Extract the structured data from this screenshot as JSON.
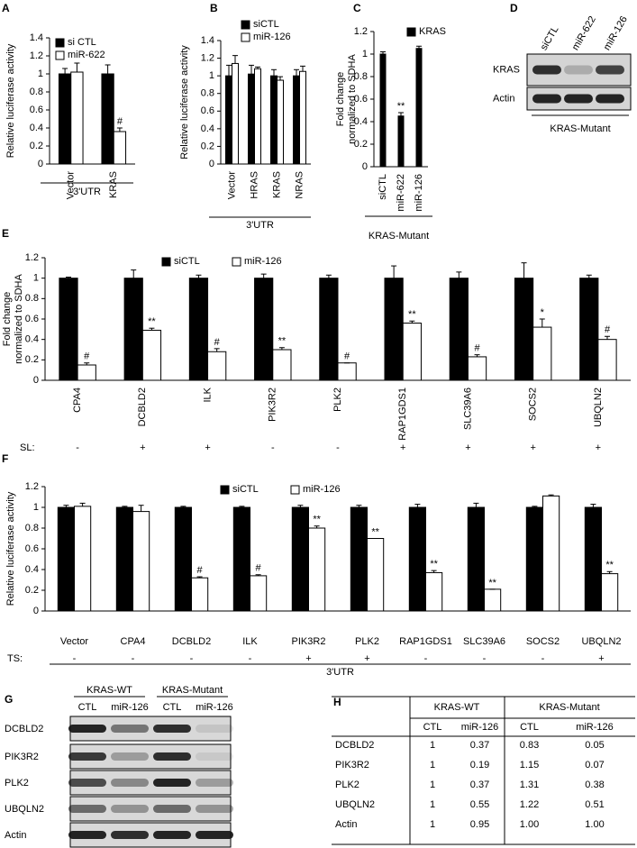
{
  "chart_data": [
    {
      "panel": "A",
      "type": "bar",
      "ylabel": "Relative luciferase activity",
      "categories": [
        "Vector",
        "KRAS"
      ],
      "series": [
        {
          "name": "si CTL",
          "color": "#000000",
          "values": [
            1,
            1
          ],
          "errors": [
            0.06,
            0.1
          ]
        },
        {
          "name": "miR-622",
          "color": "#ffffff",
          "values": [
            1.02,
            0.36
          ],
          "errors": [
            0.1,
            0.04
          ],
          "annotations": [
            null,
            "#"
          ]
        }
      ],
      "ylim": [
        0,
        1.4
      ],
      "yticks": [
        0,
        0.2,
        0.4,
        0.6,
        0.8,
        1,
        1.2,
        1.4
      ],
      "group_label": "3'UTR"
    },
    {
      "panel": "B",
      "type": "bar",
      "ylabel": "Relative luciferase activity",
      "categories": [
        "Vector",
        "HRAS",
        "KRAS",
        "NRAS"
      ],
      "series": [
        {
          "name": "siCTL",
          "color": "#000000",
          "values": [
            1,
            1.02,
            1,
            1
          ],
          "errors": [
            0.12,
            0.1,
            0.07,
            0.07
          ]
        },
        {
          "name": "miR-126",
          "color": "#ffffff",
          "values": [
            1.14,
            1.08,
            0.95,
            1.05
          ],
          "errors": [
            0.09,
            0.02,
            0.04,
            0.06
          ]
        }
      ],
      "ylim": [
        0,
        1.4
      ],
      "yticks": [
        0,
        0.2,
        0.4,
        0.6,
        0.8,
        1,
        1.2,
        1.4
      ],
      "group_label": "3'UTR"
    },
    {
      "panel": "C",
      "type": "bar",
      "ylabel": [
        "Fold change",
        "normalized to SDHA"
      ],
      "categories": [
        "siCTL",
        "miR-622",
        "miR-126"
      ],
      "series": [
        {
          "name": "KRAS",
          "color": "#000000",
          "values": [
            1,
            0.45,
            1.05
          ],
          "errors": [
            0.02,
            0.03,
            0.02
          ],
          "annotations": [
            null,
            "**",
            null
          ]
        }
      ],
      "ylim": [
        0,
        1.2
      ],
      "yticks": [
        0,
        0.2,
        0.4,
        0.6,
        0.8,
        1,
        1.2
      ],
      "group_label": "KRAS-Mutant"
    },
    {
      "panel": "E",
      "type": "bar",
      "ylabel": [
        "Fold change",
        "normalized to SDHA"
      ],
      "categories": [
        "CPA4",
        "DCBLD2",
        "ILK",
        "PIK3R2",
        "PLK2",
        "RAP1GDS1",
        "SLC39A6",
        "SOCS2",
        "UBQLN2"
      ],
      "series": [
        {
          "name": "siCTL",
          "color": "#000000",
          "values": [
            1,
            1,
            1,
            1,
            1,
            1,
            1,
            1,
            1
          ],
          "errors": [
            0.01,
            0.08,
            0.03,
            0.04,
            0.03,
            0.12,
            0.06,
            0.15,
            0.03
          ]
        },
        {
          "name": "miR-126",
          "color": "#ffffff",
          "values": [
            0.15,
            0.49,
            0.28,
            0.3,
            0.17,
            0.56,
            0.23,
            0.52,
            0.4
          ],
          "errors": [
            0.02,
            0.02,
            0.03,
            0.02,
            0,
            0.02,
            0.02,
            0.08,
            0.03
          ],
          "annotations": [
            "#",
            "**",
            "#",
            "**",
            "#",
            "**",
            "#",
            "*",
            "#"
          ]
        }
      ],
      "ylim": [
        0,
        1.2
      ],
      "yticks": [
        0,
        0.2,
        0.4,
        0.6,
        0.8,
        1,
        1.2
      ],
      "row_label": "SL:",
      "row_values": [
        "-",
        "+",
        "+",
        "-",
        "-",
        "+",
        "+",
        "+",
        "+"
      ]
    },
    {
      "panel": "F",
      "type": "bar",
      "ylabel": "Relative luciferase activity",
      "categories": [
        "Vector",
        "CPA4",
        "DCBLD2",
        "ILK",
        "PIK3R2",
        "PLK2",
        "RAP1GDS1",
        "SLC39A6",
        "SOCS2",
        "UBQLN2"
      ],
      "series": [
        {
          "name": "siCTL",
          "color": "#000000",
          "values": [
            1,
            1,
            1,
            1,
            1,
            1,
            1,
            1,
            1,
            1
          ],
          "errors": [
            0.02,
            0.01,
            0.01,
            0.01,
            0.02,
            0.02,
            0.03,
            0.04,
            0.01,
            0.03
          ]
        },
        {
          "name": "miR-126",
          "color": "#ffffff",
          "values": [
            1.01,
            0.96,
            0.32,
            0.34,
            0.8,
            0.7,
            0.37,
            0.21,
            1.11,
            0.36
          ],
          "errors": [
            0.03,
            0.06,
            0.01,
            0.01,
            0.02,
            0,
            0.02,
            0,
            0.01,
            0.02
          ],
          "annotations": [
            null,
            null,
            "#",
            "#",
            "**",
            "**",
            "**",
            "**",
            null,
            "**"
          ]
        }
      ],
      "ylim": [
        0,
        1.2
      ],
      "yticks": [
        0,
        0.2,
        0.4,
        0.6,
        0.8,
        1,
        1.2
      ],
      "row_label": "TS:",
      "row_values": [
        "-",
        "-",
        "-",
        "-",
        "+",
        "+",
        "-",
        "-",
        "-",
        "+"
      ],
      "group_label": "3'UTR"
    }
  ],
  "blots": [
    {
      "panel": "D",
      "lanes": [
        "siCTL",
        "miR-622",
        "miR-126"
      ],
      "rows": [
        "KRAS",
        "Actin"
      ],
      "group_label": "KRAS-Mutant"
    },
    {
      "panel": "G",
      "groups": [
        "KRAS-WT",
        "KRAS-Mutant"
      ],
      "lanes": [
        "CTL",
        "miR-126",
        "CTL",
        "miR-126"
      ],
      "rows": [
        "DCBLD2",
        "PIK3R2",
        "PLK2",
        "UBQLN2",
        "Actin"
      ]
    }
  ],
  "table": {
    "panel": "H",
    "groups": [
      "KRAS-WT",
      "KRAS-Mutant"
    ],
    "columns": [
      "CTL",
      "miR-126",
      "CTL",
      "miR-126"
    ],
    "rows": [
      {
        "label": "DCBLD2",
        "cells": [
          "1",
          "0.37",
          "0.83",
          "0.05"
        ]
      },
      {
        "label": "PIK3R2",
        "cells": [
          "1",
          "0.19",
          "1.15",
          "0.07"
        ]
      },
      {
        "label": "PLK2",
        "cells": [
          "1",
          "0.37",
          "1.31",
          "0.38"
        ]
      },
      {
        "label": "UBQLN2",
        "cells": [
          "1",
          "0.55",
          "1.22",
          "0.51"
        ]
      },
      {
        "label": "Actin",
        "cells": [
          "1",
          "0.95",
          "1.00",
          "1.00"
        ]
      }
    ]
  }
}
